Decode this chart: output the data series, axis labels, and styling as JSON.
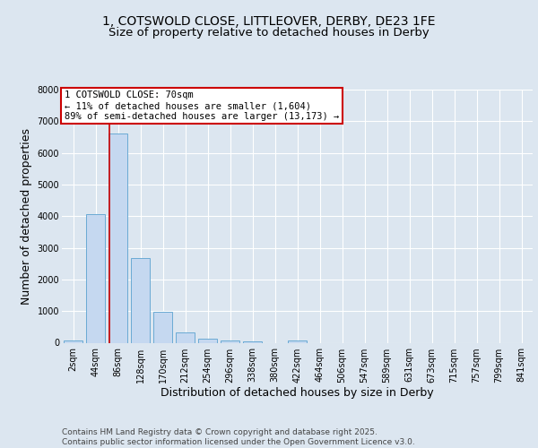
{
  "title_line1": "1, COTSWOLD CLOSE, LITTLEOVER, DERBY, DE23 1FE",
  "title_line2": "Size of property relative to detached houses in Derby",
  "xlabel": "Distribution of detached houses by size in Derby",
  "ylabel": "Number of detached properties",
  "bar_labels": [
    "2sqm",
    "44sqm",
    "86sqm",
    "128sqm",
    "170sqm",
    "212sqm",
    "254sqm",
    "296sqm",
    "338sqm",
    "380sqm",
    "422sqm",
    "464sqm",
    "506sqm",
    "547sqm",
    "589sqm",
    "631sqm",
    "673sqm",
    "715sqm",
    "757sqm",
    "799sqm",
    "841sqm"
  ],
  "bar_values": [
    80,
    4050,
    6620,
    2680,
    990,
    330,
    140,
    70,
    40,
    0,
    60,
    0,
    0,
    0,
    0,
    0,
    0,
    0,
    0,
    0,
    0
  ],
  "bar_color": "#c5d8f0",
  "bar_edgecolor": "#6aaad4",
  "vline_color": "#cc0000",
  "annotation_text": "1 COTSWOLD CLOSE: 70sqm\n← 11% of detached houses are smaller (1,604)\n89% of semi-detached houses are larger (13,173) →",
  "annotation_box_edgecolor": "#cc0000",
  "annotation_box_facecolor": "#ffffff",
  "ylim": [
    0,
    8000
  ],
  "yticks": [
    0,
    1000,
    2000,
    3000,
    4000,
    5000,
    6000,
    7000,
    8000
  ],
  "background_color": "#dce6f0",
  "plot_background": "#dce6f0",
  "grid_color": "#ffffff",
  "footnote": "Contains HM Land Registry data © Crown copyright and database right 2025.\nContains public sector information licensed under the Open Government Licence v3.0.",
  "title_fontsize": 10,
  "subtitle_fontsize": 9.5,
  "axis_label_fontsize": 9,
  "tick_fontsize": 7,
  "annotation_fontsize": 7.5,
  "footnote_fontsize": 6.5,
  "vline_x_index": 1.62
}
